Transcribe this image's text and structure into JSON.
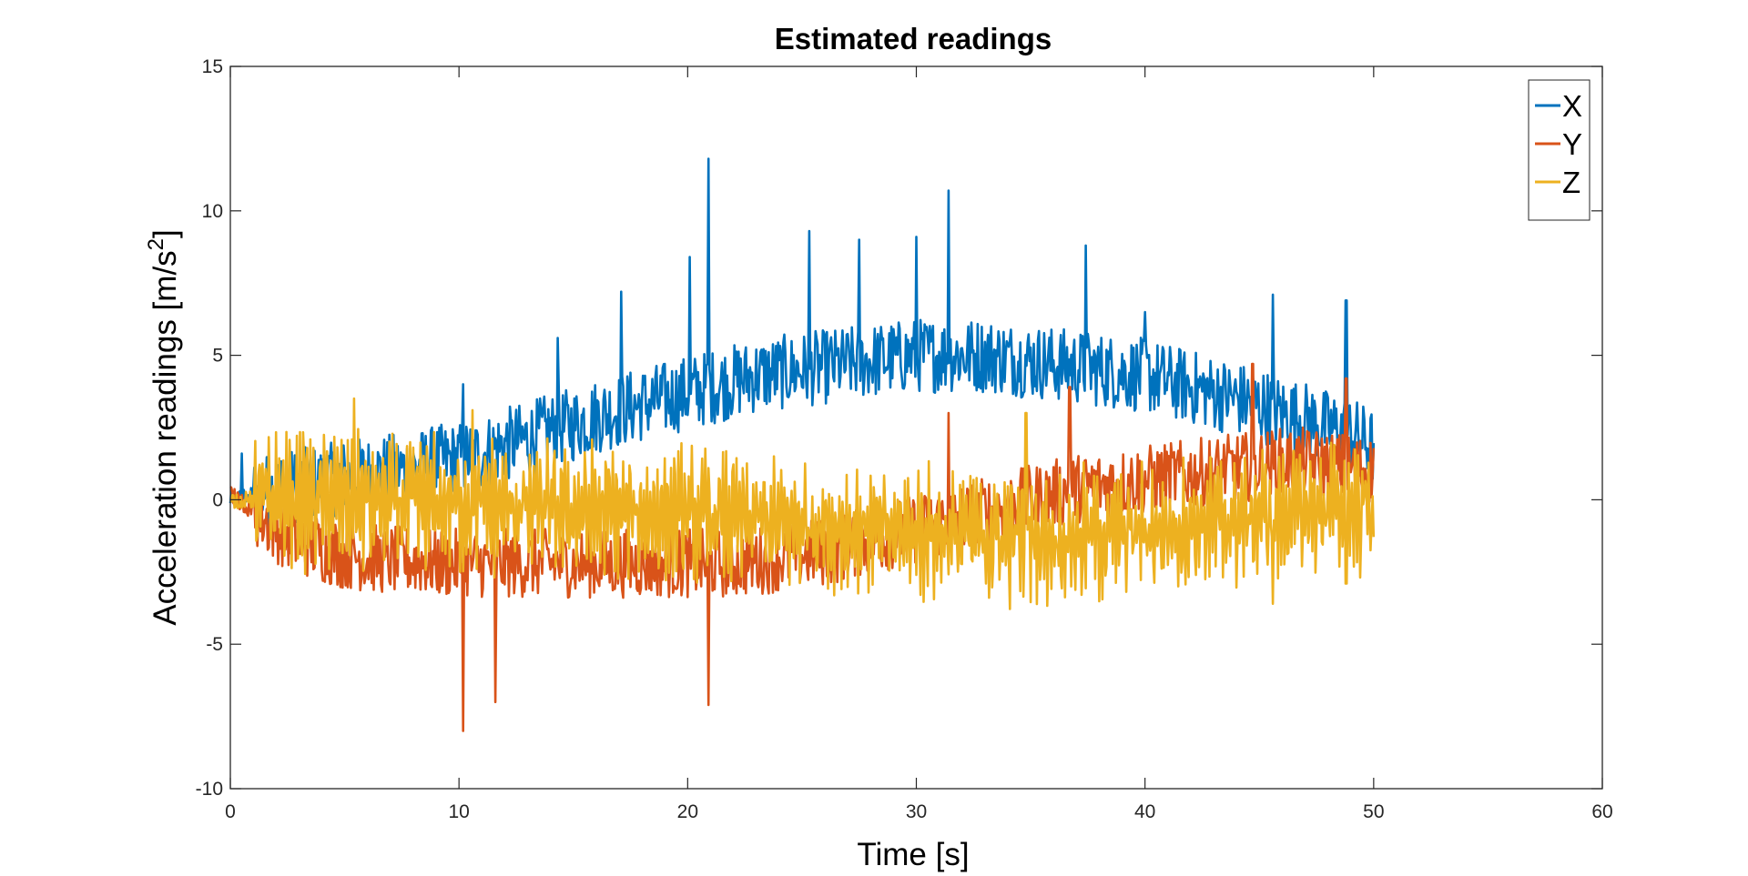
{
  "chart_data": {
    "type": "line",
    "title": "Estimated readings",
    "xlabel": "Time [s]",
    "ylabel": "Acceleration readings [m/s",
    "ylabel_superscript": "2",
    "ylabel_suffix": "]",
    "xlim": [
      0,
      60
    ],
    "ylim": [
      -10,
      15
    ],
    "xticks": [
      "0",
      "10",
      "20",
      "30",
      "40",
      "50",
      "60"
    ],
    "yticks": [
      "-10",
      "-5",
      "0",
      "5",
      "10",
      "15"
    ],
    "grid": false,
    "legend_position": "top-right",
    "series": [
      {
        "name": "X",
        "color": "#0072BD",
        "x": [
          0,
          1,
          2,
          3,
          4,
          5,
          6,
          7,
          8,
          9,
          10,
          11,
          12,
          13,
          14,
          15,
          16,
          17,
          18,
          19,
          20,
          21,
          22,
          23,
          24,
          25,
          26,
          27,
          28,
          29,
          30,
          31,
          32,
          33,
          34,
          35,
          36,
          37,
          38,
          39,
          40,
          41,
          42,
          43,
          44,
          45,
          46,
          47,
          48,
          49,
          50
        ],
        "y": [
          0,
          0.2,
          0.4,
          0.5,
          0.6,
          0.8,
          0.9,
          1.0,
          1.1,
          1.3,
          1.4,
          1.6,
          1.9,
          2.1,
          2.4,
          2.6,
          2.9,
          3.1,
          3.3,
          3.5,
          3.7,
          3.9,
          4.1,
          4.3,
          4.4,
          4.5,
          4.6,
          4.7,
          4.8,
          4.9,
          5.0,
          5.0,
          5.0,
          5.0,
          4.9,
          4.8,
          4.7,
          4.6,
          4.5,
          4.4,
          4.3,
          4.1,
          3.9,
          3.7,
          3.5,
          3.3,
          3.0,
          2.8,
          2.5,
          2.3,
          1.8
        ],
        "peaks": [
          [
            0.5,
            1.6
          ],
          [
            10.2,
            4.0
          ],
          [
            14.3,
            5.6
          ],
          [
            17.1,
            7.2
          ],
          [
            20.1,
            8.4
          ],
          [
            20.9,
            11.8
          ],
          [
            25.3,
            9.3
          ],
          [
            27.5,
            9.0
          ],
          [
            30.0,
            9.1
          ],
          [
            31.4,
            10.7
          ],
          [
            37.4,
            8.8
          ],
          [
            40.0,
            6.5
          ],
          [
            45.6,
            7.1
          ],
          [
            48.8,
            6.9
          ]
        ]
      },
      {
        "name": "Y",
        "color": "#D95319",
        "x": [
          0,
          1,
          2,
          3,
          4,
          5,
          6,
          7,
          8,
          9,
          10,
          11,
          12,
          13,
          14,
          15,
          16,
          17,
          18,
          19,
          20,
          21,
          22,
          23,
          24,
          25,
          26,
          27,
          28,
          29,
          30,
          31,
          32,
          33,
          34,
          35,
          36,
          37,
          38,
          39,
          40,
          41,
          42,
          43,
          44,
          45,
          46,
          47,
          48,
          49,
          50
        ],
        "y": [
          0.2,
          -0.4,
          -1.0,
          -1.4,
          -1.7,
          -1.9,
          -2.0,
          -2.1,
          -2.1,
          -2.2,
          -2.2,
          -2.2,
          -2.2,
          -2.2,
          -2.2,
          -2.2,
          -2.2,
          -2.2,
          -2.2,
          -2.2,
          -2.2,
          -2.2,
          -2.2,
          -2.1,
          -2.0,
          -1.9,
          -1.8,
          -1.6,
          -1.4,
          -1.2,
          -1.0,
          -0.8,
          -0.6,
          -0.4,
          -0.2,
          0.0,
          0.2,
          0.4,
          0.5,
          0.6,
          0.7,
          0.8,
          0.9,
          1.0,
          1.1,
          1.2,
          1.3,
          1.3,
          1.2,
          1.1,
          1.0
        ],
        "peaks": [
          [
            10.2,
            -8.0
          ],
          [
            11.6,
            -7.0
          ],
          [
            20.9,
            -7.1
          ],
          [
            31.4,
            3.0
          ],
          [
            36.7,
            3.9
          ],
          [
            44.7,
            4.7
          ],
          [
            48.8,
            4.2
          ]
        ]
      },
      {
        "name": "Z",
        "color": "#EDB120",
        "x": [
          0,
          1,
          2,
          3,
          4,
          5,
          6,
          7,
          8,
          9,
          10,
          11,
          12,
          13,
          14,
          15,
          16,
          17,
          18,
          19,
          20,
          21,
          22,
          23,
          24,
          25,
          26,
          27,
          28,
          29,
          30,
          31,
          32,
          33,
          34,
          35,
          36,
          37,
          38,
          39,
          40,
          41,
          42,
          43,
          44,
          45,
          46,
          47,
          48,
          49,
          50
        ],
        "y": [
          0,
          0.0,
          0.0,
          0.0,
          0.0,
          0.0,
          -0.1,
          -0.1,
          -0.1,
          -0.2,
          -0.2,
          -0.2,
          -0.3,
          -0.3,
          -0.3,
          -0.4,
          -0.4,
          -0.4,
          -0.5,
          -0.5,
          -0.6,
          -0.6,
          -0.7,
          -0.7,
          -0.8,
          -0.8,
          -0.9,
          -1.0,
          -1.0,
          -1.1,
          -1.1,
          -1.2,
          -1.2,
          -1.3,
          -1.3,
          -1.3,
          -1.3,
          -1.3,
          -1.2,
          -1.2,
          -1.1,
          -1.0,
          -0.9,
          -0.8,
          -0.7,
          -0.6,
          -0.5,
          -0.4,
          -0.3,
          -0.3,
          -0.2
        ],
        "peaks": [
          [
            5.4,
            3.5
          ],
          [
            10.6,
            3.1
          ],
          [
            34.8,
            3.0
          ],
          [
            45.6,
            -3.6
          ],
          [
            48.8,
            -2.9
          ]
        ]
      }
    ]
  }
}
